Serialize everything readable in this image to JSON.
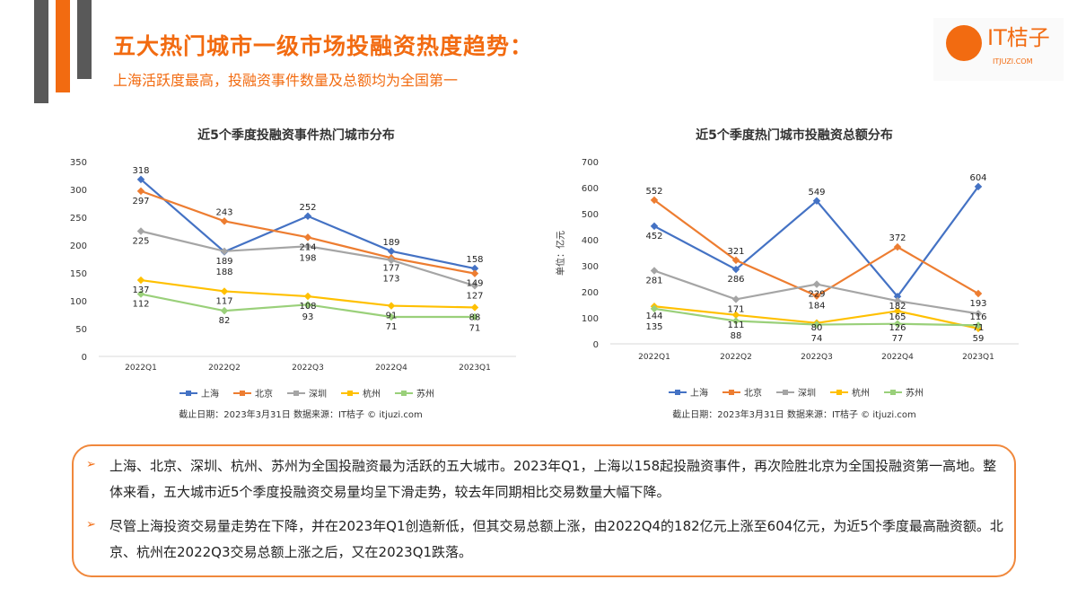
{
  "header": {
    "title": "五大热门城市一级市场投融资热度趋势：",
    "subtitle": "上海活跃度最高，投融资事件数量及总额均为全国第一"
  },
  "logo": {
    "text": "IT桔子",
    "sub": "ITJUZI.COM"
  },
  "colors": {
    "accent": "#f26b11",
    "上海": "#4472c4",
    "北京": "#ed7d31",
    "深圳": "#a5a5a5",
    "杭州": "#ffc000",
    "苏州": "#9ad07a"
  },
  "chart_data": [
    {
      "type": "line",
      "title": "近5个季度投融资事件热门城市分布",
      "ylabel": "",
      "ylim": [
        0,
        350
      ],
      "yticks": [
        0,
        50,
        100,
        150,
        200,
        250,
        300,
        350
      ],
      "categories": [
        "2022Q1",
        "2022Q2",
        "2022Q3",
        "2022Q4",
        "2023Q1"
      ],
      "series": [
        {
          "name": "上海",
          "values": [
            318,
            188,
            252,
            189,
            158
          ]
        },
        {
          "name": "北京",
          "values": [
            297,
            243,
            214,
            177,
            149
          ]
        },
        {
          "name": "深圳",
          "values": [
            225,
            189,
            198,
            173,
            127
          ]
        },
        {
          "name": "杭州",
          "values": [
            137,
            117,
            108,
            91,
            88
          ]
        },
        {
          "name": "苏州",
          "values": [
            112,
            82,
            93,
            71,
            71
          ]
        }
      ],
      "legend": "bottom",
      "source": "截止日期：2023年3月31日    数据来源：IT桔子 © itjuzi.com"
    },
    {
      "type": "line",
      "title": "近5个季度热门城市投融资总额分布",
      "ylabel": "单位：亿元",
      "ylim": [
        0,
        700
      ],
      "yticks": [
        0,
        100,
        200,
        300,
        400,
        500,
        600,
        700
      ],
      "categories": [
        "2022Q1",
        "2022Q2",
        "2022Q3",
        "2022Q4",
        "2023Q1"
      ],
      "series": [
        {
          "name": "上海",
          "values": [
            452,
            286,
            549,
            182,
            604
          ]
        },
        {
          "name": "北京",
          "values": [
            552,
            321,
            184,
            372,
            193
          ]
        },
        {
          "name": "深圳",
          "values": [
            281,
            171,
            229,
            165,
            116
          ]
        },
        {
          "name": "杭州",
          "values": [
            144,
            111,
            80,
            126,
            59
          ]
        },
        {
          "name": "苏州",
          "values": [
            135,
            88,
            74,
            77,
            71
          ]
        }
      ],
      "legend": "bottom",
      "source": "截止日期：2023年3月31日    数据来源：IT桔子 © itjuzi.com"
    }
  ],
  "notes": [
    "上海、北京、深圳、杭州、苏州为全国投融资最为活跃的五大城市。2023年Q1，上海以158起投融资事件，再次险胜北京为全国投融资第一高地。整体来看，五大城市近5个季度投融资交易量均呈下滑走势，较去年同期相比交易数量大幅下降。",
    "尽管上海投资交易量走势在下降，并在2023年Q1创造新低，但其交易总额上涨，由2022Q4的182亿元上涨至604亿元，为近5个季度最高融资额。北京、杭州在2022Q3交易总额上涨之后，又在2023Q1跌落。"
  ],
  "bullet": "➢"
}
